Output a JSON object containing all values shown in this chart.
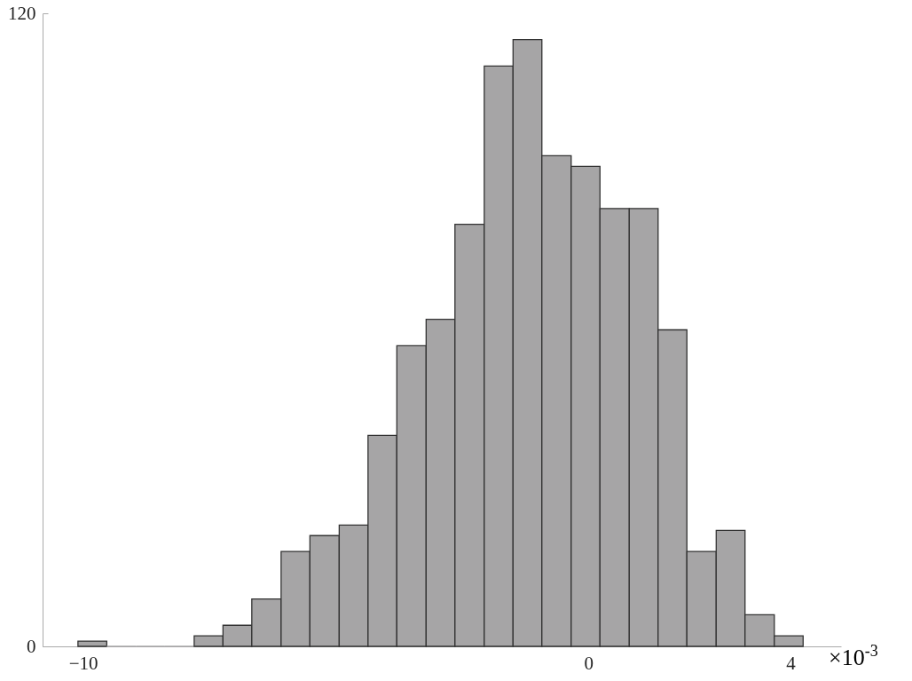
{
  "chart_data": {
    "type": "histogram",
    "xlabel": "×10$^{-3}$",
    "bins": [
      -10.1,
      -9.53,
      -8.95,
      -8.38,
      -7.8,
      -7.23,
      -6.66,
      -6.08,
      -5.51,
      -4.93,
      -4.36,
      -3.79,
      -3.21,
      -2.64,
      -2.06,
      -1.49,
      -0.92,
      -0.34,
      0.23,
      0.81,
      1.38,
      1.95,
      2.53,
      3.1,
      3.68,
      4.25
    ],
    "values": [
      1,
      0,
      0,
      0,
      2,
      4,
      9,
      18,
      21,
      23,
      40,
      57,
      62,
      80,
      110,
      115,
      93,
      91,
      83,
      83,
      60,
      18,
      22,
      6,
      2
    ],
    "color": "#a6a5a6",
    "xlim": [
      -10.8,
      5
    ],
    "xticks": [
      {
        "value": -10,
        "label": "−10"
      },
      0,
      4
    ],
    "ylim": [
      0,
      120
    ],
    "yticks": [
      0,
      120
    ],
    "grid": false
  }
}
